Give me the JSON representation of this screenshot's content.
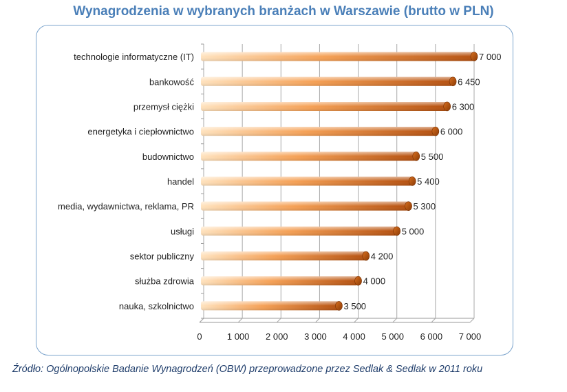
{
  "chart_data": {
    "type": "bar",
    "orientation": "horizontal",
    "title": "Wynagrodzenia w wybranych branżach w Warszawie (brutto w PLN)",
    "categories": [
      "technologie informatyczne (IT)",
      "bankowość",
      "przemysł ciężki",
      "energetyka i ciepłownictwo",
      "budownictwo",
      "handel",
      "media, wydawnictwa, reklama, PR",
      "usługi",
      "sektor publiczny",
      "służba zdrowia",
      "nauka, szkolnictwo"
    ],
    "values": [
      7000,
      6450,
      6300,
      6000,
      5500,
      5400,
      5300,
      5000,
      4200,
      4000,
      3500
    ],
    "value_labels": [
      "7 000",
      "6 450",
      "6 300",
      "6 000",
      "5 500",
      "5 400",
      "5 300",
      "5 000",
      "4 200",
      "4 000",
      "3 500"
    ],
    "xlim": [
      0,
      7000
    ],
    "xticks": [
      0,
      1000,
      2000,
      3000,
      4000,
      5000,
      6000,
      7000
    ],
    "xtick_labels": [
      "0",
      "1 000",
      "2 000",
      "3 000",
      "4 000",
      "5 000",
      "6 000",
      "7 000"
    ],
    "xlabel": "",
    "ylabel": "",
    "grid": true,
    "legend": false
  },
  "source_note": "Źródło: Ogólnopolskie Badanie Wynagrodzeń (OBW) przeprowadzone przez Sedlak & Sedlak w 2011 roku",
  "colors": {
    "bar_light": "#ffd9a8",
    "bar_mid": "#f08a34",
    "bar_dark": "#a94a0c",
    "title": "#4a7fb8",
    "frame": "#7aa3cc"
  }
}
